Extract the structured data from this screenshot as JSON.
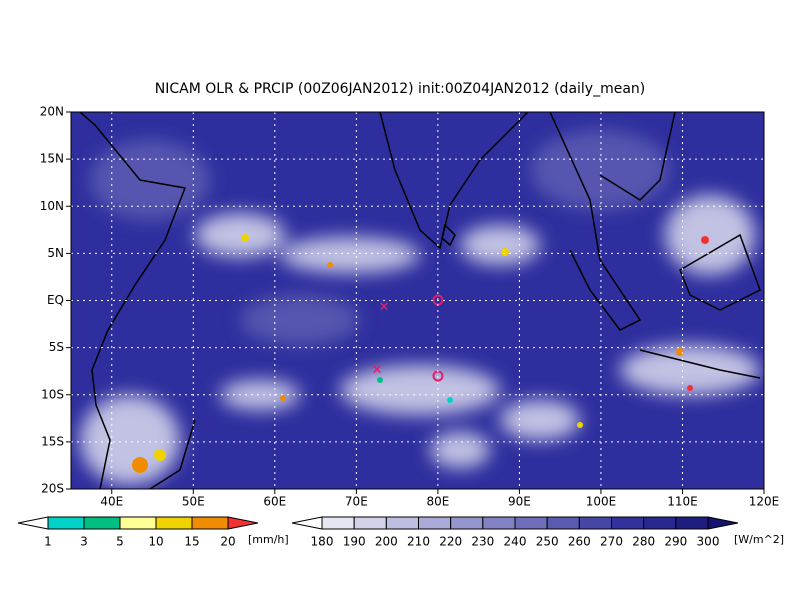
{
  "title": "NICAM OLR & PRCIP (00Z06JAN2012) init:00Z04JAN2012 (daily_mean)",
  "map": {
    "lon_ticks": [
      {
        "value": 40,
        "label": "40E"
      },
      {
        "value": 50,
        "label": "50E"
      },
      {
        "value": 60,
        "label": "60E"
      },
      {
        "value": 70,
        "label": "70E"
      },
      {
        "value": 80,
        "label": "80E"
      },
      {
        "value": 90,
        "label": "90E"
      },
      {
        "value": 100,
        "label": "100E"
      },
      {
        "value": 110,
        "label": "110E"
      },
      {
        "value": 120,
        "label": "120E"
      }
    ],
    "lat_ticks": [
      {
        "value": 20,
        "label": "20N"
      },
      {
        "value": 15,
        "label": "15N"
      },
      {
        "value": 10,
        "label": "10N"
      },
      {
        "value": 5,
        "label": "5N"
      },
      {
        "value": 0,
        "label": "EQ"
      },
      {
        "value": -5,
        "label": "5S"
      },
      {
        "value": -10,
        "label": "10S"
      },
      {
        "value": -15,
        "label": "15S"
      },
      {
        "value": -20,
        "label": "20S"
      }
    ]
  },
  "precip_colorbar": {
    "labels": [
      1,
      3,
      5,
      10,
      15,
      20
    ],
    "unit": "[mm/h]",
    "colors": [
      "#ffffff",
      "#00d2c8",
      "#00be82",
      "#ffff96",
      "#f0d200",
      "#f08c00",
      "#f03232"
    ]
  },
  "olr_colorbar": {
    "labels": [
      180,
      190,
      200,
      210,
      220,
      230,
      240,
      250,
      260,
      270,
      280,
      290,
      300
    ],
    "unit": "[W/m^2]",
    "colors": [
      "#ffffff",
      "#e6e6f2",
      "#d2d2ea",
      "#bebee2",
      "#aaaad8",
      "#9696ce",
      "#8282c4",
      "#6e6eba",
      "#5a5ab0",
      "#4646a6",
      "#32329c",
      "#282890",
      "#1e1e80",
      "#141470"
    ]
  }
}
